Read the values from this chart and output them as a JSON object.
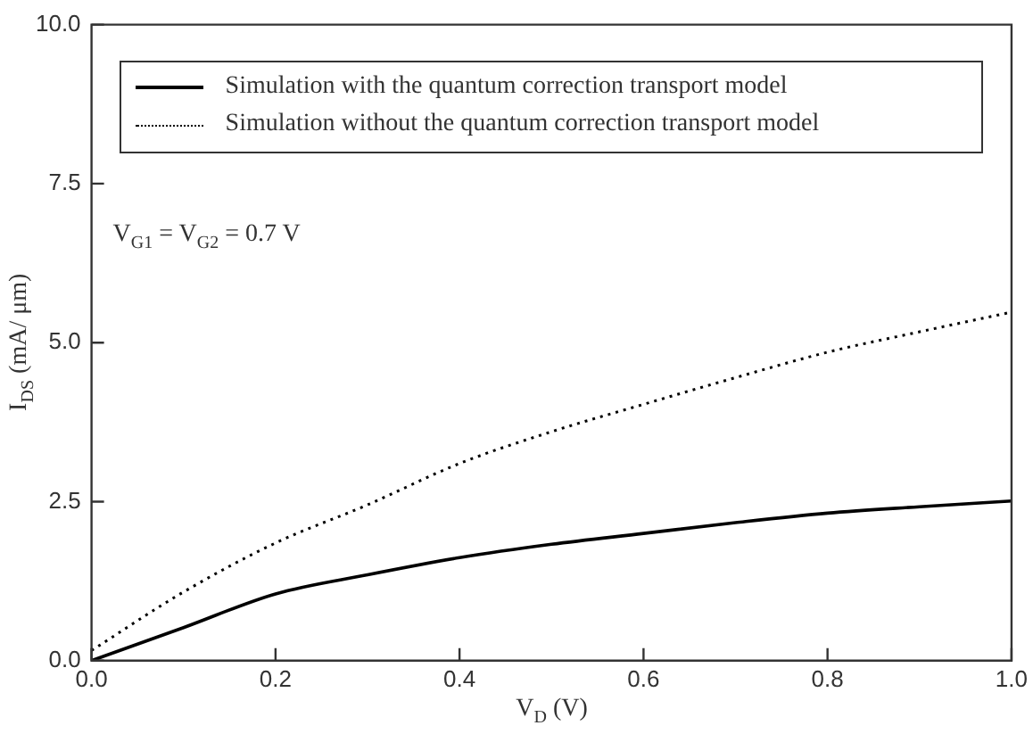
{
  "chart_data": {
    "type": "line",
    "xlabel": "V$_{D}$ (V)",
    "ylabel": "I$_{DS}$ (mA/ μm)",
    "x": [
      0,
      0.1,
      0.2,
      0.3,
      0.4,
      0.5,
      0.6,
      0.7,
      0.8,
      0.9,
      1.0
    ],
    "series": [
      {
        "name": "Simulation with the quantum correction transport model",
        "color": "#000000",
        "line_style": "solid",
        "values": [
          0,
          0.52,
          1.05,
          1.35,
          1.62,
          1.83,
          2.0,
          2.17,
          2.32,
          2.42,
          2.51
        ]
      },
      {
        "name": "Simulation without the quantum correction transport model",
        "color": "#000000",
        "line_style": "dotted",
        "values": [
          0.16,
          1.08,
          1.85,
          2.45,
          3.1,
          3.6,
          4.03,
          4.45,
          4.85,
          5.17,
          5.48
        ]
      }
    ],
    "xlim": [
      0,
      1.0
    ],
    "xticks": [
      {
        "value": 0,
        "label": "0.0"
      },
      0.2,
      0.4,
      0.6,
      0.8,
      {
        "value": 1.0,
        "label": "1.0"
      }
    ],
    "ylim": [
      0,
      10
    ],
    "yticks": [
      {
        "value": 0,
        "label": "0.0"
      },
      2.5,
      {
        "value": 5,
        "label": "5.0"
      },
      7.5,
      {
        "value": 10,
        "label": "10.0"
      }
    ],
    "annotations": [
      "V$_{G1}$ = V$_{G2}$ = 0.7 V"
    ],
    "legend": "top",
    "grid": false,
    "marker": "none"
  }
}
